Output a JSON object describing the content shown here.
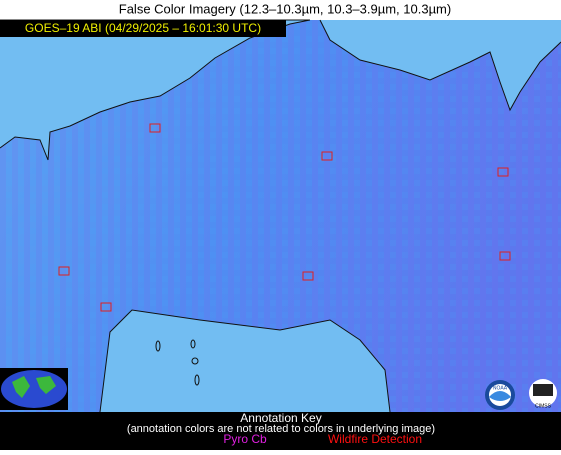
{
  "header": {
    "title": "False Color Imagery (12.3–10.3µm, 10.3–3.9µm, 10.3µm)"
  },
  "image": {
    "timestamp": "GOES–19 ABI (04/29/2025 – 16:01:30 UTC)"
  },
  "logos": {
    "noaa": "NOAA",
    "cimss": "CIMSS"
  },
  "key": {
    "title": "Annotation Key",
    "note": "(annotation colors are not related to colors in underlying image)",
    "items": [
      {
        "label": "Pyro Cb",
        "color": "#e020e0"
      },
      {
        "label": "Wildfire Detection",
        "color": "#ff1010"
      }
    ]
  }
}
